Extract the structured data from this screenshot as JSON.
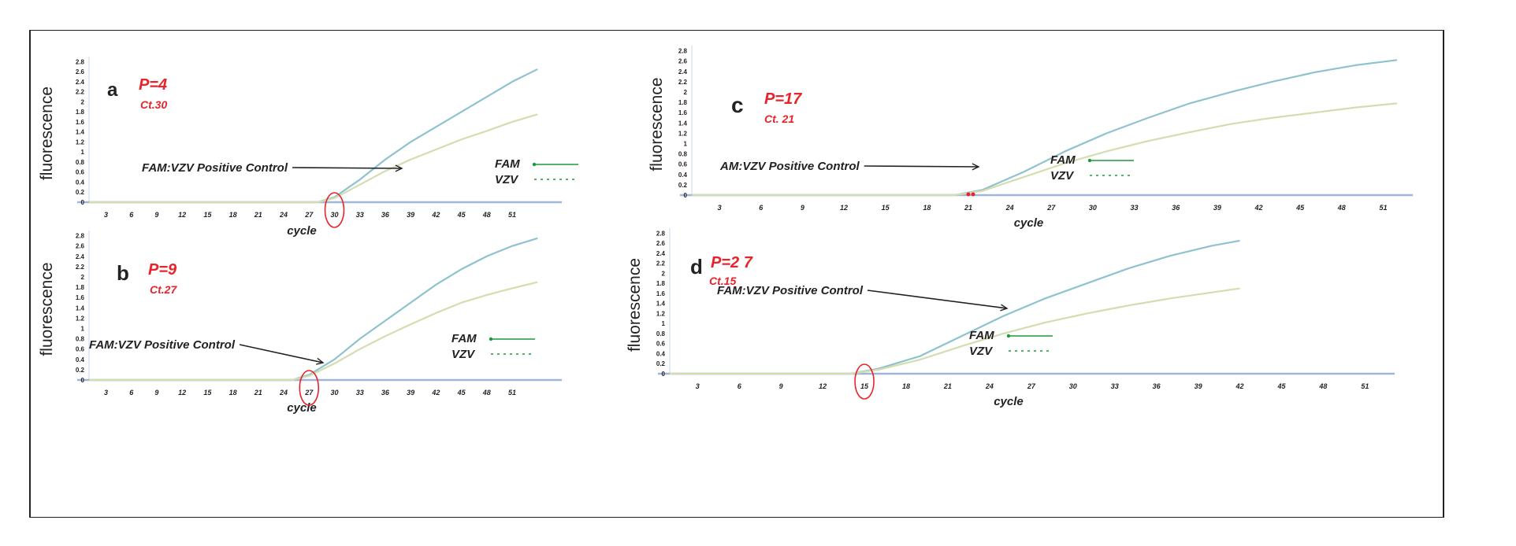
{
  "colors": {
    "fam": "#8fc2cf",
    "vzv": "#d3ddb0",
    "baseline": "#9fb6d8",
    "label": "#e8232a",
    "green": "#1a9a3a",
    "tick": "#222222"
  },
  "chart_data": [
    {
      "panel": "a",
      "type": "line",
      "p_label": "P=4",
      "ct_label": "Ct.30",
      "xlabel": "cycle",
      "ylabel": "fluorescence",
      "xticks": [
        "3",
        "6",
        "9",
        "12",
        "15",
        "18",
        "21",
        "24",
        "27",
        "30",
        "33",
        "36",
        "39",
        "42",
        "45",
        "48",
        "51"
      ],
      "yticks": [
        "0",
        "0.2",
        "0.4",
        "0.6",
        "0.8",
        "1",
        "1.2",
        "1.4",
        "1.6",
        "1.8",
        "2",
        "2.2",
        "2.4",
        "2.6",
        "2.8"
      ],
      "annotation": "FAM:VZV Positive Control",
      "legend": [
        "FAM",
        "VZV"
      ],
      "circled_x": "30",
      "xlim": [
        1,
        55
      ],
      "ylim": [
        0,
        2.9
      ],
      "series": [
        {
          "name": "FAM",
          "x": [
            1,
            28,
            30,
            33,
            36,
            39,
            42,
            45,
            48,
            51,
            54
          ],
          "y": [
            0,
            0,
            0.1,
            0.45,
            0.85,
            1.2,
            1.5,
            1.8,
            2.1,
            2.4,
            2.65
          ]
        },
        {
          "name": "VZV",
          "x": [
            1,
            28,
            30,
            33,
            36,
            39,
            42,
            45,
            48,
            51,
            54
          ],
          "y": [
            0,
            0,
            0.08,
            0.35,
            0.62,
            0.85,
            1.05,
            1.25,
            1.42,
            1.6,
            1.75
          ]
        }
      ]
    },
    {
      "panel": "b",
      "type": "line",
      "p_label": "P=9",
      "ct_label": "Ct.27",
      "xlabel": "cycle",
      "ylabel": "fluorescence",
      "xticks": [
        "3",
        "6",
        "9",
        "12",
        "15",
        "18",
        "21",
        "24",
        "27",
        "30",
        "33",
        "36",
        "39",
        "42",
        "45",
        "48",
        "51"
      ],
      "yticks": [
        "0",
        "0.2",
        "0.4",
        "0.6",
        "0.8",
        "1",
        "1.2",
        "1.4",
        "1.6",
        "1.8",
        "2",
        "2.2",
        "2.4",
        "2.6",
        "2.8"
      ],
      "annotation": "FAM:VZV Positive Control",
      "legend": [
        "FAM",
        "VZV"
      ],
      "circled_x": "27",
      "xlim": [
        1,
        55
      ],
      "ylim": [
        0,
        2.9
      ],
      "series": [
        {
          "name": "FAM",
          "x": [
            1,
            25,
            27,
            30,
            33,
            36,
            39,
            42,
            45,
            48,
            51,
            54
          ],
          "y": [
            0,
            0,
            0.1,
            0.4,
            0.8,
            1.15,
            1.5,
            1.85,
            2.15,
            2.4,
            2.6,
            2.75
          ]
        },
        {
          "name": "VZV",
          "x": [
            1,
            25,
            27,
            30,
            33,
            36,
            39,
            42,
            45,
            48,
            51,
            54
          ],
          "y": [
            0,
            0,
            0.08,
            0.32,
            0.6,
            0.85,
            1.08,
            1.3,
            1.5,
            1.65,
            1.78,
            1.9
          ]
        }
      ]
    },
    {
      "panel": "c",
      "type": "line",
      "p_label": "P=17",
      "ct_label": "Ct. 21",
      "xlabel": "cycle",
      "ylabel": "fluorescence",
      "xticks": [
        "3",
        "6",
        "9",
        "12",
        "15",
        "18",
        "21",
        "24",
        "27",
        "30",
        "33",
        "36",
        "39",
        "42",
        "45",
        "48",
        "51"
      ],
      "yticks": [
        "0",
        "0.2",
        "0.4",
        "0.6",
        "0.8",
        "1",
        "1.2",
        "1.4",
        "1.6",
        "1.8",
        "2",
        "2.2",
        "2.4",
        "2.6",
        "2.8"
      ],
      "annotation": "AM:VZV Positive Control",
      "legend": [
        "FAM",
        "VZV"
      ],
      "circled_x": "",
      "xlim": [
        1,
        52
      ],
      "ylim": [
        0,
        2.9
      ],
      "series": [
        {
          "name": "FAM",
          "x": [
            1,
            20,
            22,
            25,
            28,
            31,
            34,
            37,
            40,
            43,
            46,
            49,
            52
          ],
          "y": [
            0,
            0,
            0.1,
            0.45,
            0.85,
            1.2,
            1.5,
            1.78,
            2.0,
            2.2,
            2.38,
            2.52,
            2.62
          ]
        },
        {
          "name": "VZV",
          "x": [
            1,
            20,
            22,
            25,
            28,
            31,
            34,
            37,
            40,
            43,
            46,
            49,
            52
          ],
          "y": [
            0,
            0,
            0.08,
            0.35,
            0.62,
            0.85,
            1.05,
            1.22,
            1.38,
            1.5,
            1.6,
            1.7,
            1.78
          ]
        }
      ]
    },
    {
      "panel": "d",
      "type": "line",
      "p_label": "P=2 7",
      "ct_label": "Ct.15",
      "xlabel": "cycle",
      "ylabel": "fluorescence",
      "xticks": [
        "3",
        "6",
        "9",
        "12",
        "15",
        "18",
        "21",
        "24",
        "27",
        "30",
        "33",
        "36",
        "39",
        "42",
        "45",
        "48",
        "51"
      ],
      "yticks": [
        "0",
        "0.2",
        "0.4",
        "0.6",
        "0.8",
        "1",
        "1.2",
        "1.4",
        "1.6",
        "1.8",
        "2",
        "2.2",
        "2.4",
        "2.6",
        "2.8"
      ],
      "annotation": "FAM:VZV Positive Control",
      "legend": [
        "FAM",
        "VZV"
      ],
      "circled_x": "15",
      "xlim": [
        1,
        52
      ],
      "ylim": [
        0,
        2.9
      ],
      "series": [
        {
          "name": "FAM",
          "x": [
            1,
            14,
            16,
            19,
            22,
            25,
            28,
            31,
            34,
            37,
            40,
            42
          ],
          "y": [
            0,
            0,
            0.1,
            0.35,
            0.75,
            1.15,
            1.5,
            1.8,
            2.1,
            2.35,
            2.55,
            2.65
          ]
        },
        {
          "name": "VZV",
          "x": [
            1,
            14,
            16,
            19,
            22,
            25,
            28,
            31,
            34,
            37,
            40,
            42
          ],
          "y": [
            0,
            0,
            0.08,
            0.28,
            0.55,
            0.8,
            1.02,
            1.2,
            1.36,
            1.5,
            1.62,
            1.7
          ]
        }
      ]
    }
  ]
}
